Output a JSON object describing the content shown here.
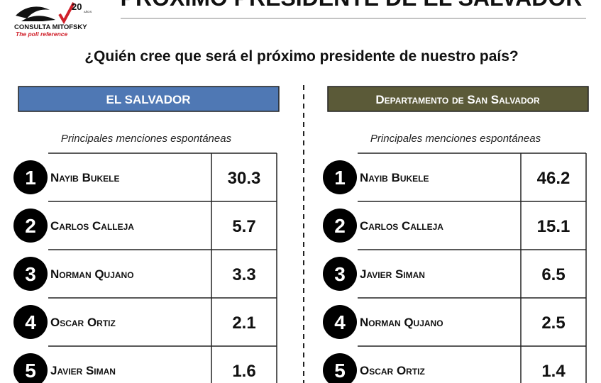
{
  "header": {
    "title": "PRÓXIMO PRESIDENTE DE EL SALVADOR",
    "logo": {
      "name": "CONSULTA MITOFSKY",
      "tagline": "The poll reference",
      "years": "20",
      "years_unit": "AÑOS"
    }
  },
  "question": "¿Quién cree que será el próximo presidente de nuestro país?",
  "panels": [
    {
      "title": "EL SALVADOR",
      "subtitle": "Principales menciones espontáneas",
      "color": "#4f78b4",
      "rows": [
        {
          "rank": 1,
          "name": "Nayib Bukele",
          "value": 30.3
        },
        {
          "rank": 2,
          "name": "Carlos Calleja",
          "value": 5.7
        },
        {
          "rank": 3,
          "name": "Norman Qujano",
          "value": 3.3
        },
        {
          "rank": 4,
          "name": "Oscar Ortiz",
          "value": 2.1
        },
        {
          "rank": 5,
          "name": "Javier Siman",
          "value": 1.6
        }
      ]
    },
    {
      "title": "Departamento de San Salvador",
      "subtitle": "Principales menciones espontáneas",
      "color": "#5b5a38",
      "rows": [
        {
          "rank": 1,
          "name": "Nayib Bukele",
          "value": 46.2
        },
        {
          "rank": 2,
          "name": "Carlos Calleja",
          "value": 15.1
        },
        {
          "rank": 3,
          "name": "Javier Siman",
          "value": 6.5
        },
        {
          "rank": 4,
          "name": "Norman Qujano",
          "value": 2.5
        },
        {
          "rank": 5,
          "name": "Oscar Ortiz",
          "value": 1.4
        }
      ]
    }
  ]
}
